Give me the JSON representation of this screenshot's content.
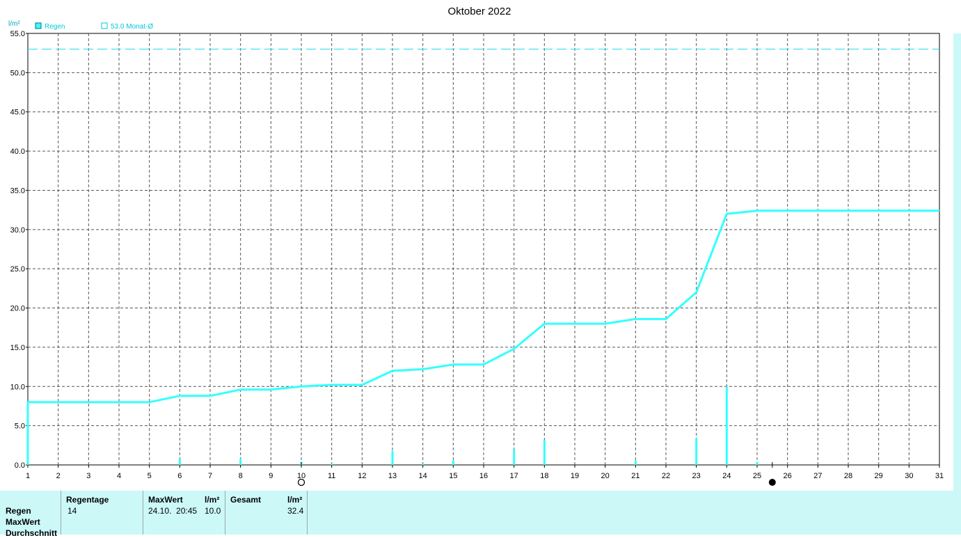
{
  "chart_data": {
    "type": "line",
    "title": "Oktober 2022",
    "ylabel": "l/m²",
    "ylim": [
      0,
      55
    ],
    "yticks": [
      "0.0",
      "5.0",
      "10.0",
      "15.0",
      "20.0",
      "25.0",
      "30.0",
      "35.0",
      "40.0",
      "45.0",
      "50.0",
      "55.0"
    ],
    "xlim": [
      1,
      31
    ],
    "xticks": [
      "1",
      "2",
      "3",
      "4",
      "5",
      "6",
      "7",
      "8",
      "9",
      "10",
      "11",
      "12",
      "13",
      "14",
      "15",
      "16",
      "17",
      "18",
      "19",
      "20",
      "21",
      "22",
      "23",
      "24",
      "25",
      "26",
      "27",
      "28",
      "29",
      "30",
      "31"
    ],
    "grid": true,
    "legend": {
      "placement": "top-left",
      "series_label": "Regen",
      "reference_label": "53.0 Monat-Ø"
    },
    "reference_line": {
      "name": "Monat-Ø",
      "value": 53.0
    },
    "series": [
      {
        "name": "Regen",
        "color": "#33ffff",
        "x": [
          1,
          1,
          5,
          6,
          7,
          8,
          9,
          10,
          11,
          12,
          13,
          14,
          15,
          16,
          17,
          18,
          19,
          20,
          21,
          22,
          23,
          24,
          25,
          31
        ],
        "y": [
          0.0,
          8.0,
          8.0,
          8.8,
          8.8,
          9.6,
          9.6,
          10.0,
          10.2,
          10.2,
          12.0,
          12.2,
          12.8,
          12.8,
          14.8,
          18.0,
          18.0,
          18.0,
          18.6,
          18.6,
          22.0,
          32.0,
          32.4,
          32.4
        ]
      }
    ],
    "daily_bars": {
      "x": [
        1,
        6,
        8,
        10,
        11,
        13,
        14,
        15,
        17,
        18,
        21,
        23,
        24,
        25
      ],
      "y": [
        8.0,
        0.8,
        0.8,
        0.4,
        0.2,
        1.8,
        0.2,
        0.6,
        2.0,
        3.2,
        0.6,
        3.4,
        10.0,
        0.4
      ]
    },
    "markers": {
      "moon_full_day": 10,
      "moon_new_day": 25.5
    }
  },
  "stats": {
    "row_labels": [
      "Regen",
      "MaxWert",
      "Durchschnitt"
    ],
    "regentage_header": "Regentage",
    "regentage_value": "14",
    "maxwert_header": "MaxWert",
    "maxwert_unit": "l/m²",
    "maxwert_time": "24.10.  20:45",
    "maxwert_value": "10.0",
    "gesamt_header": "Gesamt",
    "gesamt_unit": "l/m²",
    "gesamt_value": "32.4"
  },
  "colors": {
    "series": "#33ffff",
    "legend_text": "#00c8d8",
    "stats_bg": "#ccf8f8"
  }
}
